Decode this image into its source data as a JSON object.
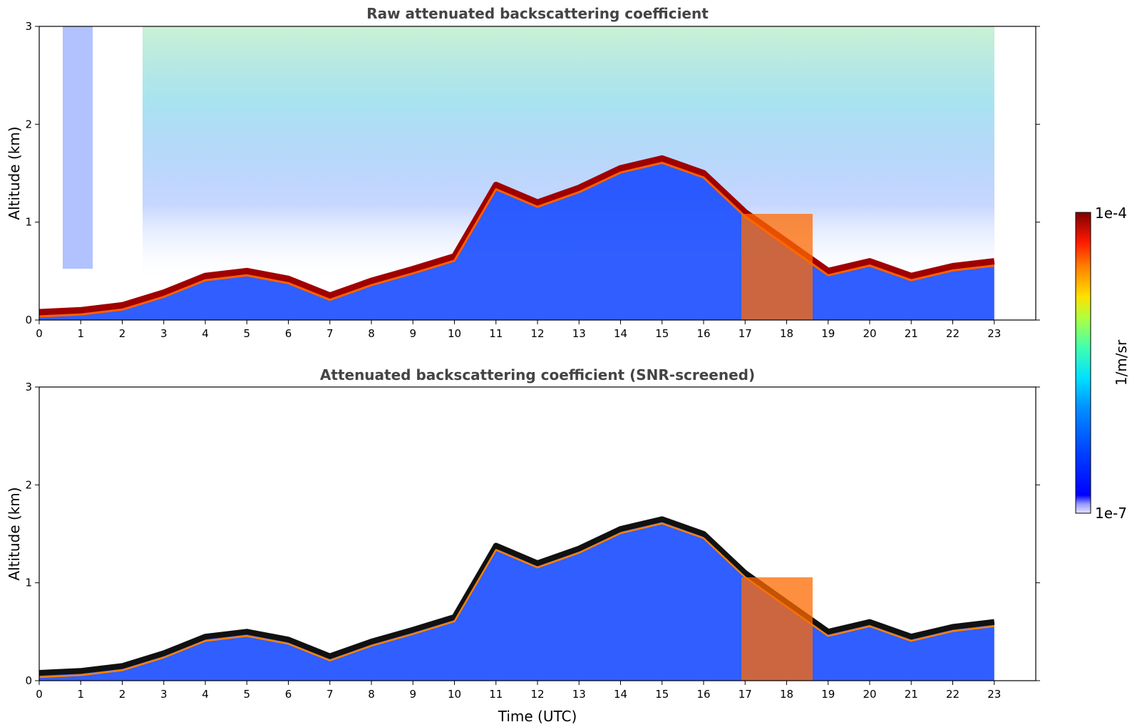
{
  "chart_data": [
    {
      "type": "heatmap",
      "title": "Raw attenuated backscattering coefficient",
      "xlabel": "",
      "ylabel": "Altitude (km)",
      "xlim": [
        0,
        24
      ],
      "ylim": [
        0,
        3
      ],
      "xticks": [
        "0",
        "1",
        "2",
        "3",
        "4",
        "5",
        "6",
        "7",
        "8",
        "9",
        "10",
        "11",
        "12",
        "13",
        "14",
        "15",
        "16",
        "17",
        "18",
        "19",
        "20",
        "21",
        "22",
        "23"
      ],
      "yticks": [
        "0",
        "1",
        "2",
        "3"
      ],
      "data_extent_hours": [
        0,
        23
      ],
      "grid": false,
      "layer_top_km": {
        "x": [
          0,
          1,
          2,
          3,
          4,
          5,
          6,
          7,
          8,
          9,
          10,
          11,
          12,
          13,
          14,
          15,
          16,
          17,
          18,
          19,
          20,
          21,
          22,
          23
        ],
        "y": [
          0.08,
          0.1,
          0.15,
          0.28,
          0.45,
          0.5,
          0.42,
          0.25,
          0.4,
          0.52,
          0.65,
          1.38,
          1.2,
          1.35,
          1.55,
          1.65,
          1.5,
          1.1,
          0.8,
          0.5,
          0.6,
          0.45,
          0.55,
          0.6
        ]
      }
    },
    {
      "type": "heatmap",
      "title": "Attenuated backscattering coefficient (SNR-screened)",
      "xlabel": "Time (UTC)",
      "ylabel": "Altitude (km)",
      "xlim": [
        0,
        24
      ],
      "ylim": [
        0,
        3
      ],
      "xticks": [
        "0",
        "1",
        "2",
        "3",
        "4",
        "5",
        "6",
        "7",
        "8",
        "9",
        "10",
        "11",
        "12",
        "13",
        "14",
        "15",
        "16",
        "17",
        "18",
        "19",
        "20",
        "21",
        "22",
        "23"
      ],
      "yticks": [
        "0",
        "1",
        "2",
        "3"
      ],
      "data_extent_hours": [
        0,
        23
      ],
      "grid": false,
      "layer_top_km": {
        "x": [
          0,
          1,
          2,
          3,
          4,
          5,
          6,
          7,
          8,
          9,
          10,
          11,
          12,
          13,
          14,
          15,
          16,
          17,
          18,
          19,
          20,
          21,
          22,
          23
        ],
        "y": [
          0.08,
          0.1,
          0.15,
          0.28,
          0.45,
          0.5,
          0.42,
          0.25,
          0.4,
          0.52,
          0.65,
          1.38,
          1.2,
          1.35,
          1.55,
          1.65,
          1.5,
          1.1,
          0.8,
          0.5,
          0.6,
          0.45,
          0.55,
          0.6
        ]
      }
    }
  ],
  "colorbar": {
    "label": "1/m/sr",
    "max_label": "1e-4",
    "min_label": "1e-7",
    "colormap": "jet",
    "colors": [
      "#00007f",
      "#0000ff",
      "#0080ff",
      "#00ffff",
      "#80ff80",
      "#ffff00",
      "#ff8000",
      "#ff0000",
      "#7f0000"
    ]
  }
}
